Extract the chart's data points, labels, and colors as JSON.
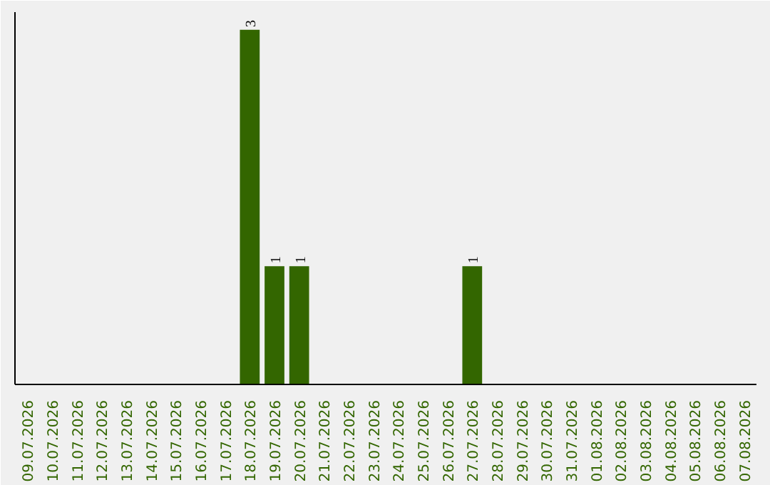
{
  "chart_data": {
    "type": "bar",
    "categories": [
      "09.07.2026",
      "10.07.2026",
      "11.07.2026",
      "12.07.2026",
      "13.07.2026",
      "14.07.2026",
      "15.07.2026",
      "16.07.2026",
      "17.07.2026",
      "18.07.2026",
      "19.07.2026",
      "20.07.2026",
      "21.07.2026",
      "22.07.2026",
      "23.07.2026",
      "24.07.2026",
      "25.07.2026",
      "26.07.2026",
      "27.07.2026",
      "28.07.2026",
      "29.07.2026",
      "30.07.2026",
      "31.07.2026",
      "01.08.2026",
      "02.08.2026",
      "03.08.2026",
      "04.08.2026",
      "05.08.2026",
      "06.08.2026",
      "07.08.2026"
    ],
    "values": [
      0,
      0,
      0,
      0,
      0,
      0,
      0,
      0,
      0,
      3,
      1,
      1,
      0,
      0,
      0,
      0,
      0,
      0,
      1,
      0,
      0,
      0,
      0,
      0,
      0,
      0,
      0,
      0,
      0,
      0
    ],
    "value_labels": [
      null,
      null,
      null,
      null,
      null,
      null,
      null,
      null,
      null,
      "3",
      "1",
      "1",
      null,
      null,
      null,
      null,
      null,
      null,
      "1",
      null,
      null,
      null,
      null,
      null,
      null,
      null,
      null,
      null,
      null,
      null
    ],
    "color": "#336600",
    "grid": false,
    "tick_labels": "x"
  }
}
